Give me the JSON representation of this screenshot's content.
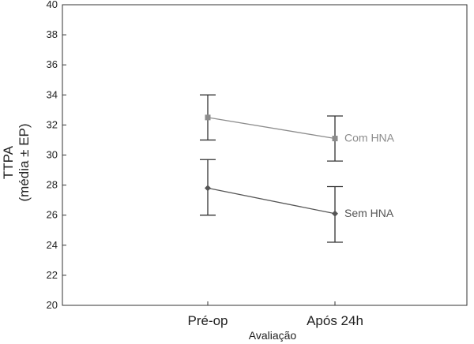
{
  "chart_data": {
    "type": "line",
    "title": "",
    "xlabel": "Avaliação",
    "ylabel_lines": [
      "TTPA",
      "(média ± EP)"
    ],
    "categories": [
      "Pré-op",
      "Após 24h"
    ],
    "ylim": [
      20,
      40
    ],
    "yticks": [
      20,
      22,
      24,
      26,
      28,
      30,
      32,
      34,
      36,
      38,
      40
    ],
    "grid": false,
    "legend": "none",
    "series": [
      {
        "name": "Com HNA",
        "values": [
          32.5,
          31.1
        ],
        "err_low": [
          31.0,
          29.6
        ],
        "err_high": [
          34.0,
          32.6
        ],
        "marker": "square",
        "color": "#8c8c8c"
      },
      {
        "name": "Sem HNA",
        "values": [
          27.8,
          26.1
        ],
        "err_low": [
          26.0,
          24.2
        ],
        "err_high": [
          29.7,
          27.9
        ],
        "marker": "diamond",
        "color": "#555555"
      }
    ]
  }
}
